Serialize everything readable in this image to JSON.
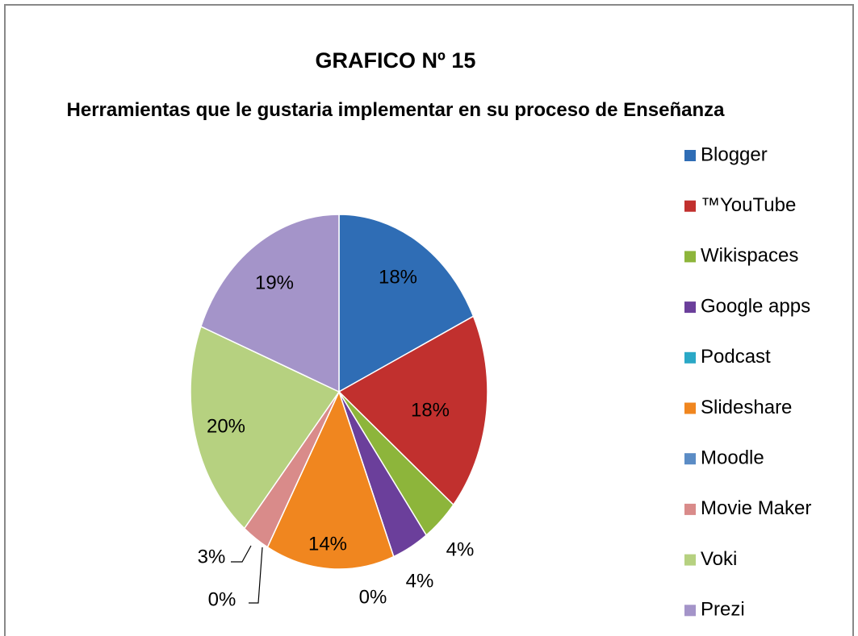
{
  "chart_data": {
    "type": "pie",
    "title": "GRAFICO Nº 15",
    "subtitle": "Herramientas  que le gustaria implementar en su proceso de Enseñanza",
    "categories": [
      "Blogger",
      "™YouTube",
      "Wikispaces",
      "Google apps",
      "Podcast",
      "Slideshare",
      "Moodle",
      "Movie Maker",
      "Voki",
      "Prezi"
    ],
    "values": [
      18,
      18,
      4,
      4,
      0,
      14,
      0,
      3,
      20,
      19
    ],
    "value_labels": [
      "18%",
      "18%",
      "4%",
      "4%",
      "0%",
      "14%",
      "0%",
      "3%",
      "20%",
      "19%"
    ],
    "colors": [
      "#2f6db5",
      "#c1302e",
      "#8db53b",
      "#6b3f9b",
      "#2aa8c6",
      "#f0861f",
      "#5b8cc5",
      "#d98b8a",
      "#b6d180",
      "#a494c9"
    ],
    "legend": "right"
  }
}
